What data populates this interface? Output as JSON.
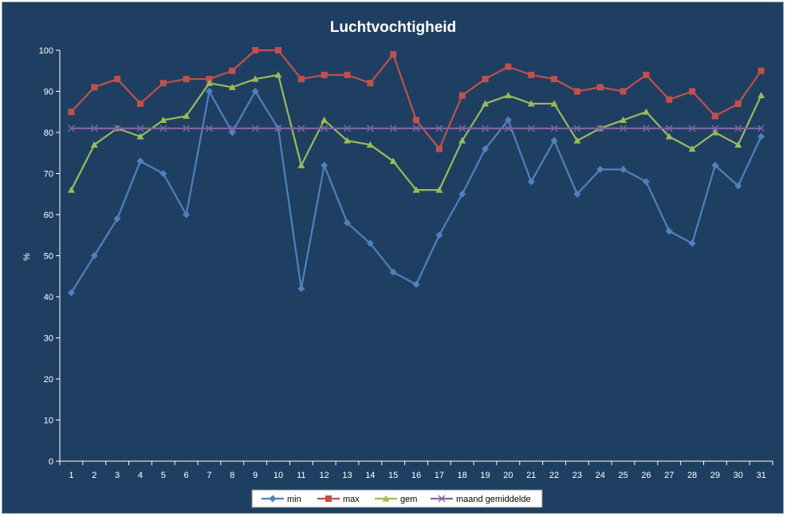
{
  "chart_data": {
    "type": "line",
    "title": "Luchtvochtigheid",
    "xlabel": "",
    "ylabel": "%",
    "ylim": [
      0,
      100
    ],
    "y_ticks": [
      0,
      10,
      20,
      30,
      40,
      50,
      60,
      70,
      80,
      90,
      100
    ],
    "grid": false,
    "legend_position": "bottom",
    "categories": [
      "1",
      "2",
      "3",
      "4",
      "5",
      "6",
      "7",
      "8",
      "9",
      "10",
      "11",
      "12",
      "13",
      "14",
      "15",
      "16",
      "17",
      "18",
      "19",
      "20",
      "21",
      "22",
      "23",
      "24",
      "25",
      "26",
      "27",
      "28",
      "29",
      "30",
      "31"
    ],
    "series": [
      {
        "name": "min",
        "color": "#4f81bd",
        "marker": "diamond",
        "values": [
          41,
          50,
          59,
          73,
          70,
          60,
          90,
          80,
          90,
          81,
          42,
          72,
          58,
          53,
          46,
          43,
          55,
          65,
          76,
          83,
          68,
          78,
          65,
          71,
          71,
          68,
          56,
          53,
          72,
          67,
          79
        ]
      },
      {
        "name": "max",
        "color": "#c0504d",
        "marker": "square",
        "values": [
          85,
          91,
          93,
          87,
          92,
          93,
          93,
          95,
          100,
          100,
          93,
          94,
          94,
          92,
          99,
          83,
          76,
          89,
          93,
          96,
          94,
          93,
          90,
          91,
          90,
          94,
          88,
          90,
          84,
          87,
          95
        ]
      },
      {
        "name": "gem",
        "color": "#9bbb59",
        "marker": "triangle",
        "values": [
          66,
          77,
          81,
          79,
          83,
          84,
          92,
          91,
          93,
          94,
          72,
          83,
          78,
          77,
          73,
          66,
          66,
          78,
          87,
          89,
          87,
          87,
          78,
          81,
          83,
          85,
          79,
          76,
          80,
          77,
          89
        ]
      },
      {
        "name": "maand gemiddelde",
        "color": "#8064a2",
        "marker": "x",
        "values": [
          81,
          81,
          81,
          81,
          81,
          81,
          81,
          81,
          81,
          81,
          81,
          81,
          81,
          81,
          81,
          81,
          81,
          81,
          81,
          81,
          81,
          81,
          81,
          81,
          81,
          81,
          81,
          81,
          81,
          81,
          81
        ]
      }
    ]
  }
}
